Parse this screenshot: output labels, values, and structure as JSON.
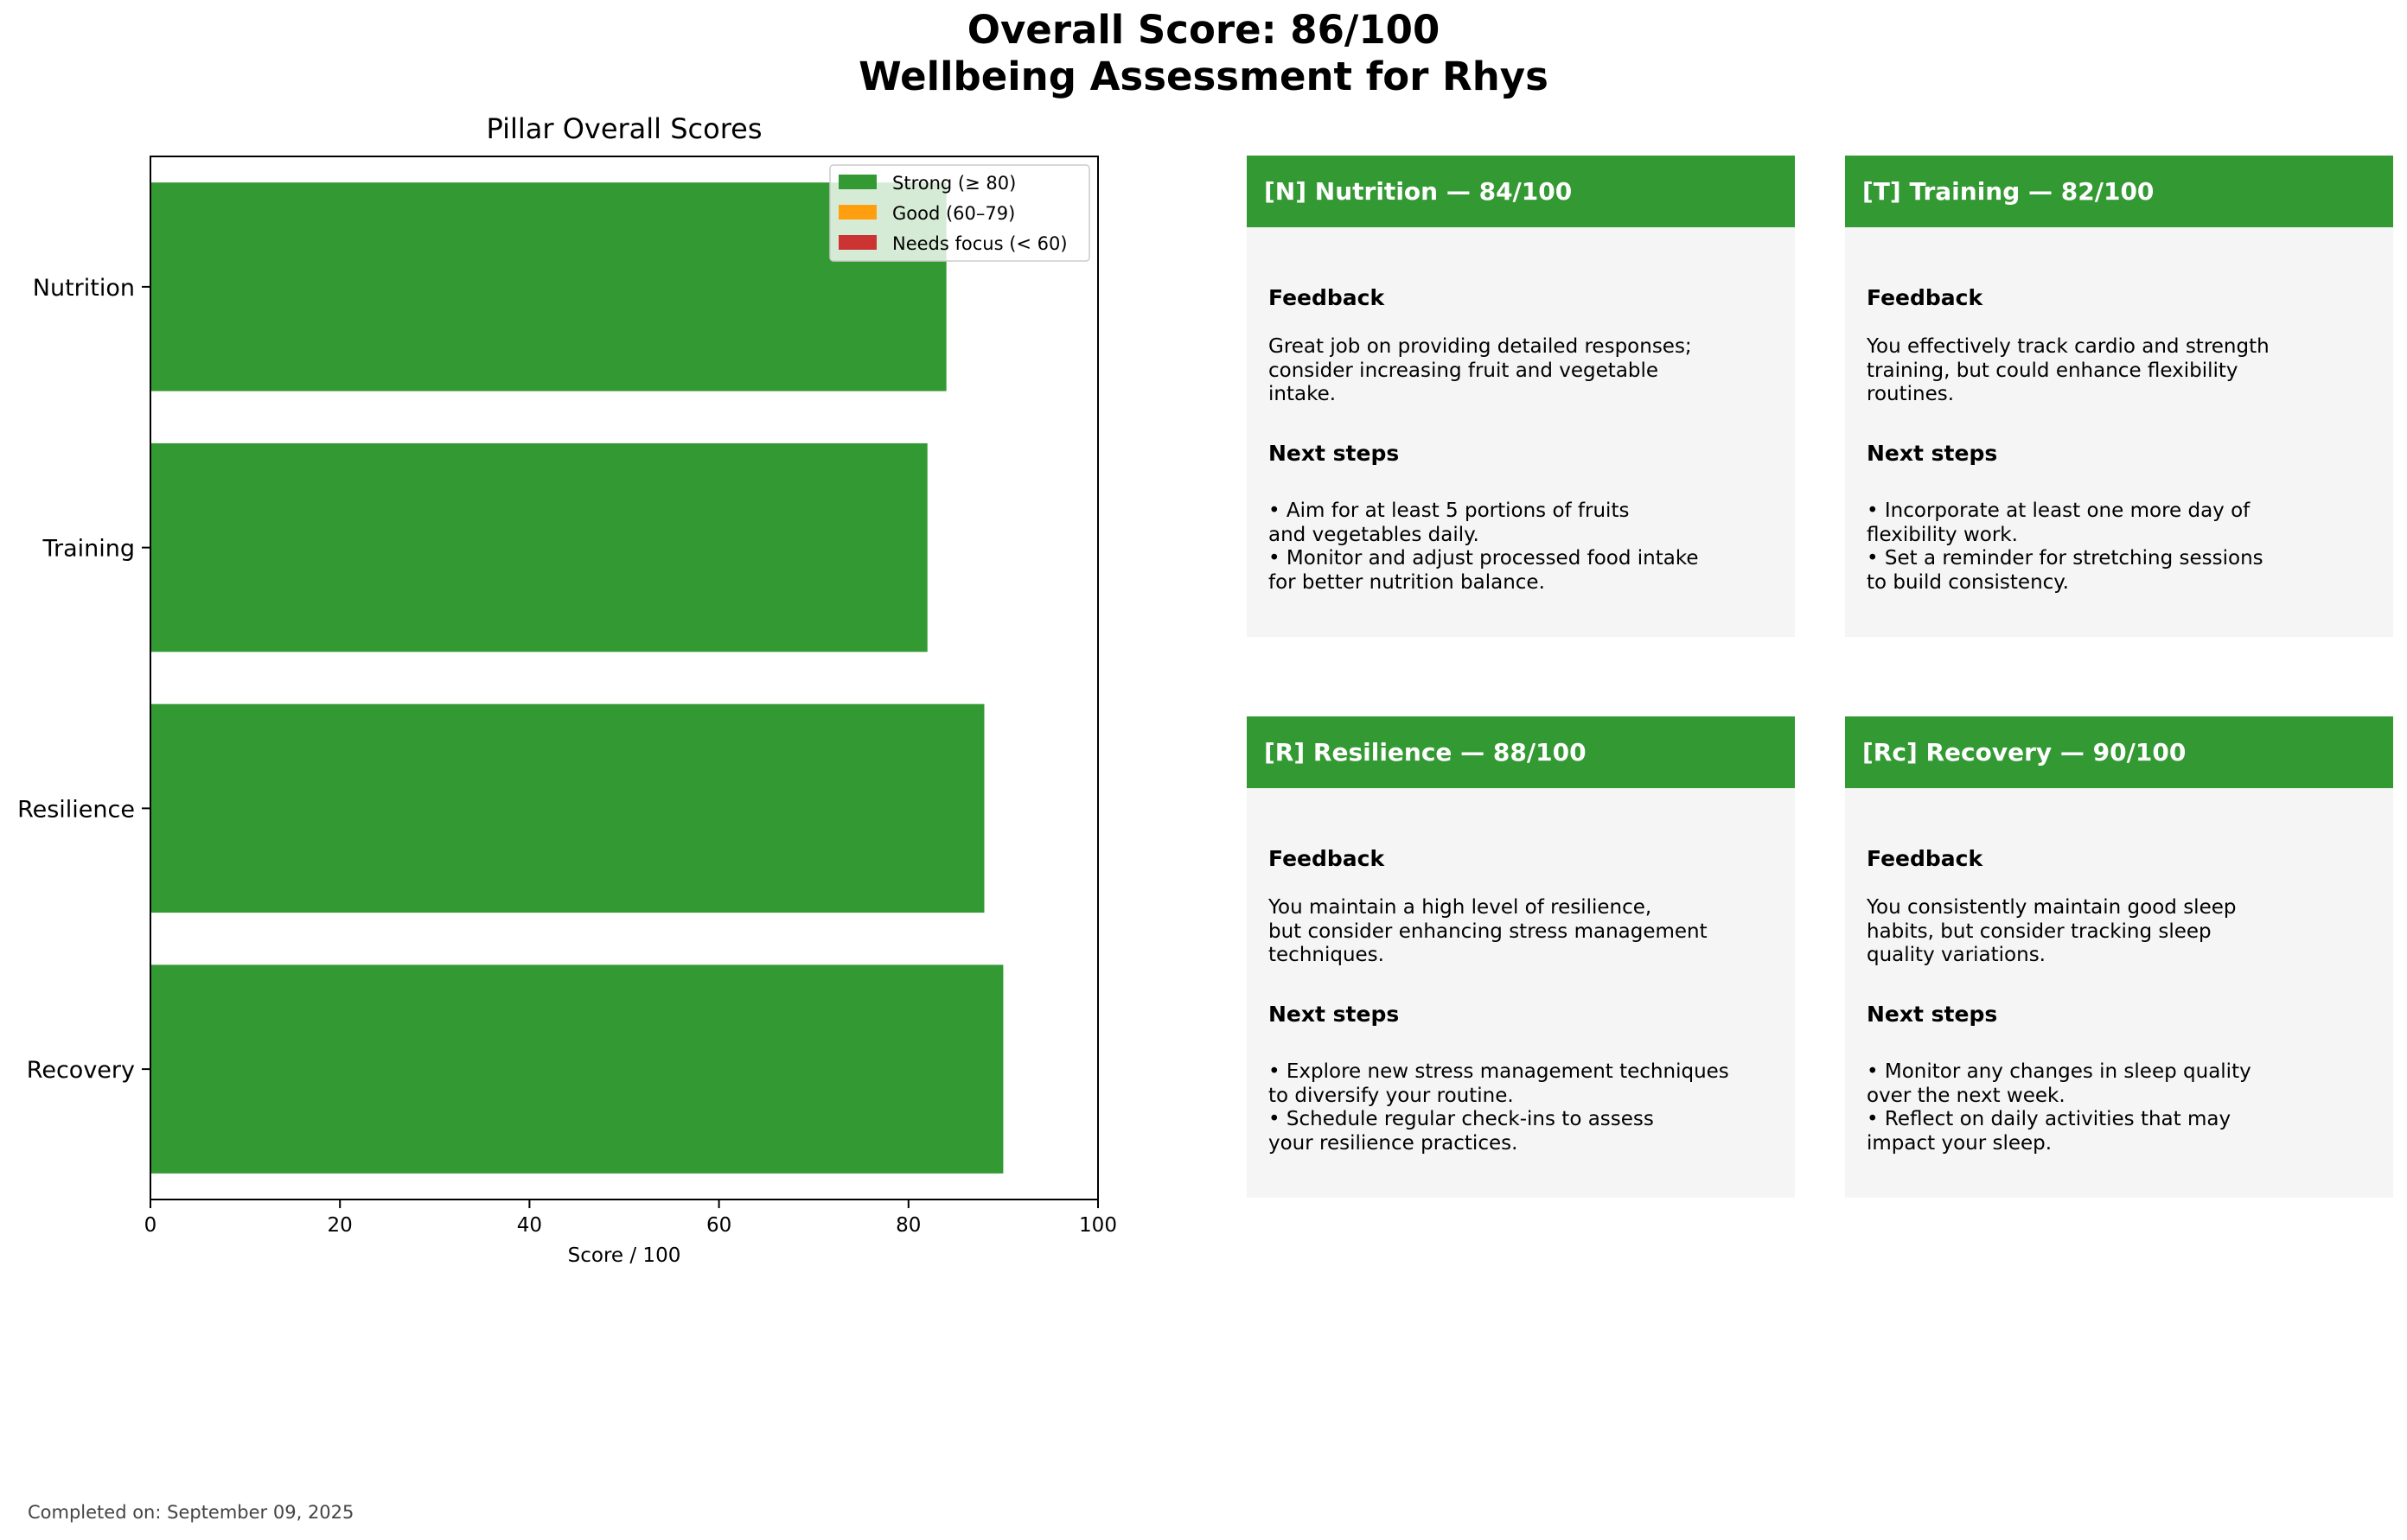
{
  "header": {
    "title_line1": "Overall Score: 86/100",
    "title_line2": "Wellbeing Assessment for Rhys"
  },
  "colors": {
    "strong": "#339933",
    "good": "#ff9f0f",
    "needs_focus": "#cc3333",
    "card_bg": "#f5f5f5"
  },
  "chart_data": {
    "type": "bar",
    "orientation": "horizontal",
    "title": "Pillar Overall Scores",
    "xlabel": "Score / 100",
    "ylabel": "",
    "xlim": [
      0,
      100
    ],
    "x_ticks": [
      0,
      20,
      40,
      60,
      80,
      100
    ],
    "categories": [
      "Nutrition",
      "Training",
      "Resilience",
      "Recovery"
    ],
    "values": [
      84,
      82,
      88,
      90
    ],
    "legend": {
      "placement": "top-right",
      "entries": [
        {
          "label": "Strong (≥ 80)",
          "color": "#339933"
        },
        {
          "label": "Good (60–79)",
          "color": "#ff9f0f"
        },
        {
          "label": "Needs focus (< 60)",
          "color": "#cc3333"
        }
      ]
    },
    "grid": false
  },
  "cards": [
    {
      "header": "[N] Nutrition — 84/100",
      "feedback_label": "Feedback",
      "feedback": "Great job on providing detailed responses;\nconsider increasing fruit and vegetable\nintake.",
      "next_label": "Next steps",
      "next_steps": "• Aim for at least 5 portions of fruits\n  and vegetables daily.\n• Monitor and adjust processed food intake\n  for better nutrition balance."
    },
    {
      "header": "[T] Training — 82/100",
      "feedback_label": "Feedback",
      "feedback": "You effectively track cardio and strength\ntraining, but could enhance flexibility\nroutines.",
      "next_label": "Next steps",
      "next_steps": "• Incorporate at least one more day of\n  flexibility work.\n• Set a reminder for stretching sessions\n  to build consistency."
    },
    {
      "header": "[R] Resilience — 88/100",
      "feedback_label": "Feedback",
      "feedback": "You maintain a high level of resilience,\nbut consider enhancing stress management\ntechniques.",
      "next_label": "Next steps",
      "next_steps": "• Explore new stress management techniques\n  to diversify your routine.\n• Schedule regular check-ins to assess\n  your resilience practices."
    },
    {
      "header": "[Rc] Recovery — 90/100",
      "feedback_label": "Feedback",
      "feedback": "You consistently maintain good sleep\nhabits, but consider tracking sleep\nquality variations.",
      "next_label": "Next steps",
      "next_steps": "• Monitor any changes in sleep quality\n  over the next week.\n• Reflect on daily activities that may\n  impact your sleep."
    }
  ],
  "footer": {
    "completed": "Completed on: September 09, 2025"
  }
}
